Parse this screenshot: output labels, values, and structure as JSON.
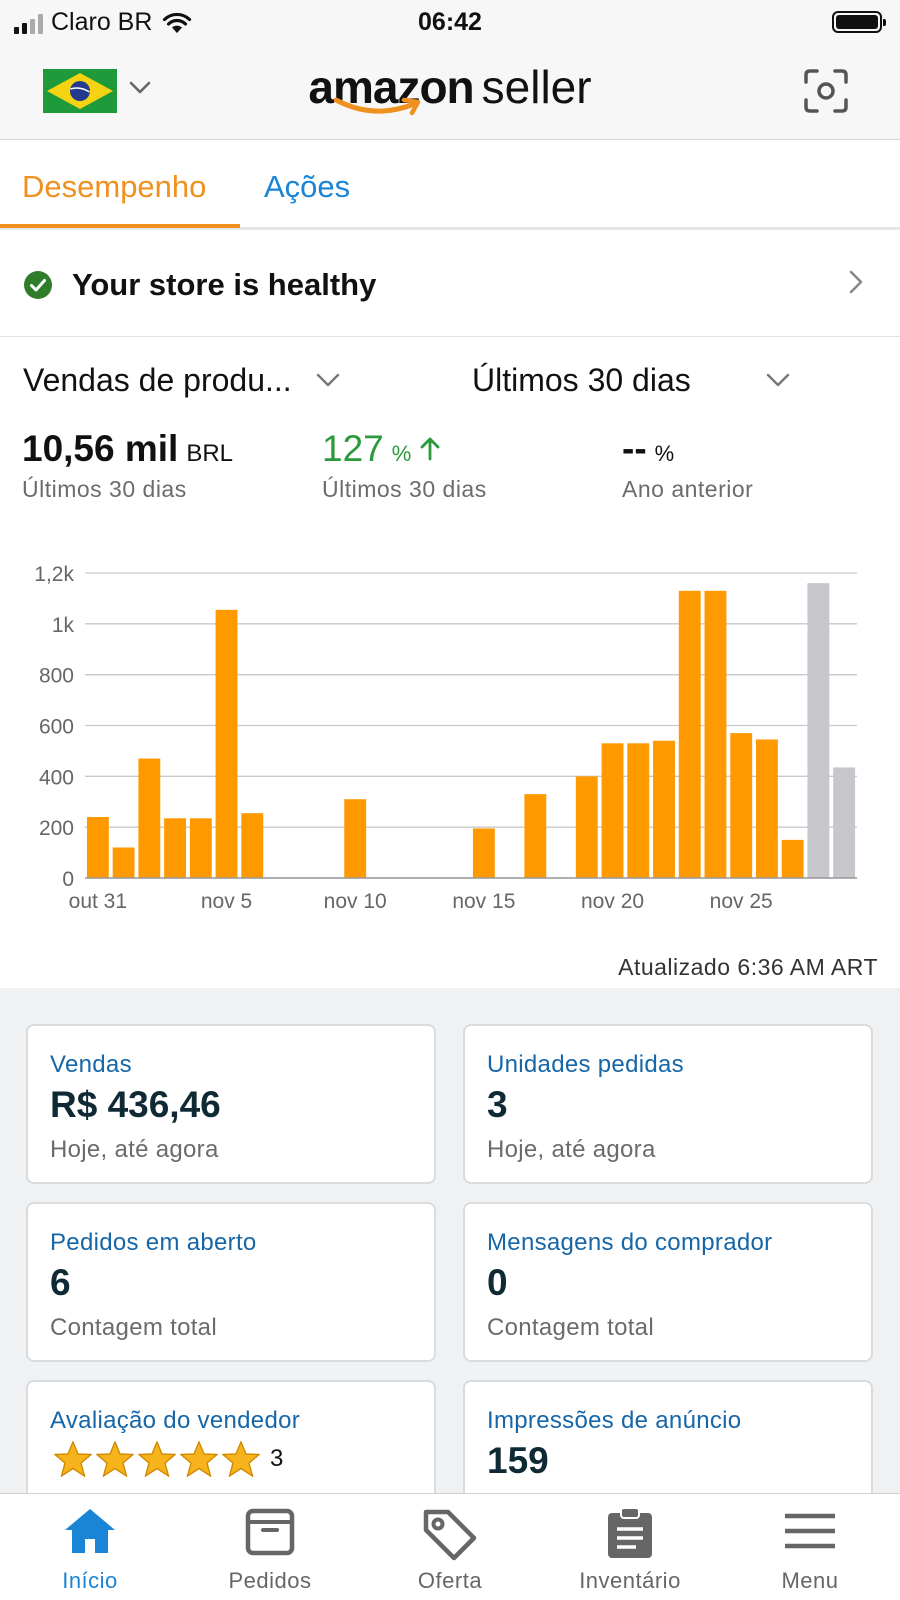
{
  "status_bar": {
    "carrier": "Claro BR",
    "time": "06:42"
  },
  "header": {
    "logo_brand": "amazon",
    "logo_product": "seller",
    "flag": "brazil-flag-icon"
  },
  "tabs": [
    {
      "label": "Desempenho",
      "active": true
    },
    {
      "label": "Ações",
      "active": false
    }
  ],
  "health": {
    "text": "Your store is healthy"
  },
  "selectors": {
    "metric": "Vendas de produ...",
    "period": "Últimos 30 dias"
  },
  "metrics": [
    {
      "value": "10,56 mil",
      "unit": "BRL",
      "label": "Últimos 30 dias"
    },
    {
      "value": "127",
      "unit": "%",
      "label": "Últimos 30 dias",
      "trend": "up"
    },
    {
      "value": "--",
      "unit": "%",
      "label": "Ano anterior"
    }
  ],
  "chart_data": {
    "type": "bar",
    "categories": [
      "out 31",
      "nov 1",
      "nov 2",
      "nov 3",
      "nov 4",
      "nov 5",
      "nov 6",
      "nov 7",
      "nov 8",
      "nov 9",
      "nov 10",
      "nov 11",
      "nov 12",
      "nov 13",
      "nov 14",
      "nov 15",
      "nov 16",
      "nov 17",
      "nov 18",
      "nov 19",
      "nov 20",
      "nov 21",
      "nov 22",
      "nov 23",
      "nov 24",
      "nov 25",
      "nov 26",
      "nov 27",
      "nov 28",
      "nov 29"
    ],
    "values": [
      240,
      120,
      470,
      235,
      235,
      1055,
      255,
      0,
      0,
      0,
      310,
      0,
      0,
      0,
      0,
      195,
      0,
      330,
      0,
      400,
      530,
      530,
      540,
      1130,
      1130,
      570,
      545,
      150,
      1160,
      435
    ],
    "bar_colors": [
      "#fe9a00",
      "#fe9a00",
      "#fe9a00",
      "#fe9a00",
      "#fe9a00",
      "#fe9a00",
      "#fe9a00",
      "#fe9a00",
      "#fe9a00",
      "#fe9a00",
      "#fe9a00",
      "#fe9a00",
      "#fe9a00",
      "#fe9a00",
      "#fe9a00",
      "#fe9a00",
      "#fe9a00",
      "#fe9a00",
      "#fe9a00",
      "#fe9a00",
      "#fe9a00",
      "#fe9a00",
      "#fe9a00",
      "#fe9a00",
      "#fe9a00",
      "#fe9a00",
      "#fe9a00",
      "#fe9a00",
      "#c6c6cb",
      "#c6c6cb"
    ],
    "x_tick_labels": [
      {
        "index": 0,
        "label": "out 31"
      },
      {
        "index": 5,
        "label": "nov 5"
      },
      {
        "index": 10,
        "label": "nov 10"
      },
      {
        "index": 15,
        "label": "nov 15"
      },
      {
        "index": 20,
        "label": "nov 20"
      },
      {
        "index": 25,
        "label": "nov 25"
      }
    ],
    "y_ticks": [
      0,
      200,
      400,
      600,
      800,
      1000,
      1200
    ],
    "y_tick_labels": [
      "0",
      "200",
      "400",
      "600",
      "800",
      "1k",
      "1,2k"
    ],
    "ylim": [
      0,
      1200
    ],
    "grid": true,
    "title": "",
    "xlabel": "",
    "ylabel": ""
  },
  "updated": "Atualizado 6:36 AM ART",
  "cards": [
    {
      "title": "Vendas",
      "value": "R$ 436,46",
      "sub": "Hoje, até agora"
    },
    {
      "title": "Unidades pedidas",
      "value": "3",
      "sub": "Hoje, até agora"
    },
    {
      "title": "Pedidos em aberto",
      "value": "6",
      "sub": "Contagem total"
    },
    {
      "title": "Mensagens do comprador",
      "value": "0",
      "sub": "Contagem total"
    },
    {
      "title": "Avaliação do vendedor",
      "rating": 5,
      "count": "3"
    },
    {
      "title": "Impressões de anúncio",
      "value": "159"
    }
  ],
  "nav": [
    {
      "label": "Início",
      "icon": "home-icon",
      "active": true
    },
    {
      "label": "Pedidos",
      "icon": "box-icon",
      "active": false
    },
    {
      "label": "Oferta",
      "icon": "tag-icon",
      "active": false
    },
    {
      "label": "Inventário",
      "icon": "clipboard-icon",
      "active": false
    },
    {
      "label": "Menu",
      "icon": "hamburger-menu-icon",
      "active": false
    }
  ],
  "colors": {
    "accent_orange": "#f0901e",
    "link_blue": "#1a85d6",
    "bar_orange": "#fe9a00",
    "bar_grey": "#c6c6cb",
    "positive_green": "#2a9a3a",
    "card_title_blue": "#1666a8"
  }
}
